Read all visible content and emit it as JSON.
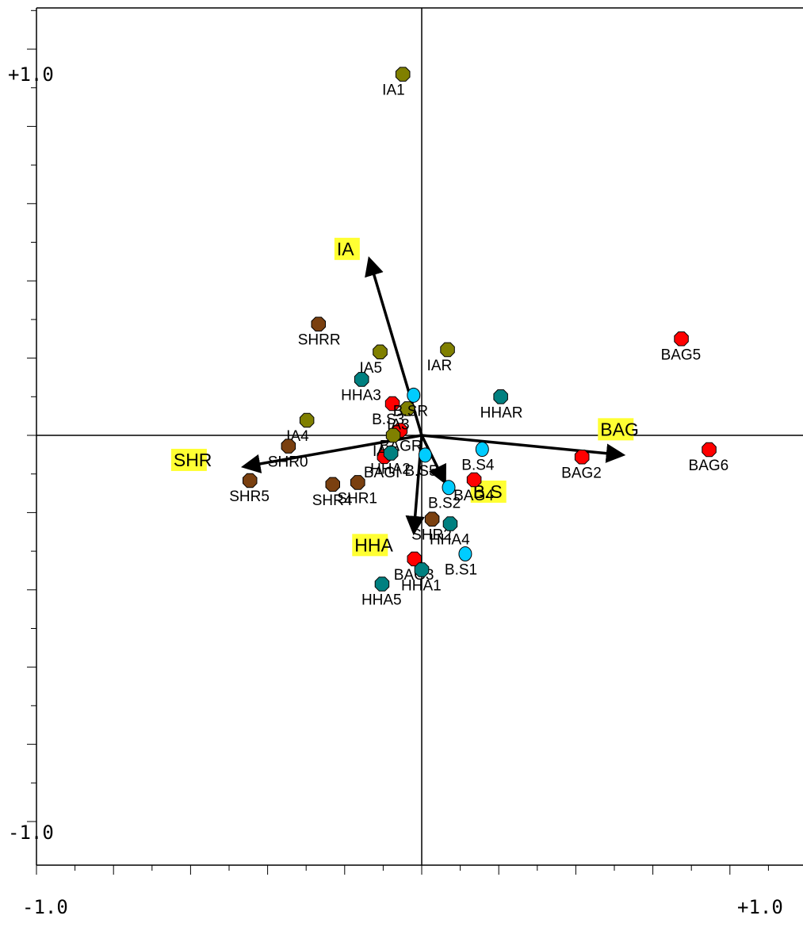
{
  "chart_data": {
    "type": "scatter",
    "title": "",
    "xlabel": "",
    "ylabel": "",
    "xlim": [
      -1.0,
      1.0
    ],
    "ylim": [
      -1.0,
      1.0
    ],
    "axis_labels": {
      "x_min": "-1.0",
      "x_max": "+1.0",
      "y_max": "+1.0",
      "y_min": "-1.0"
    },
    "vectors": [
      {
        "name": "IA",
        "x": -0.134,
        "y": 0.45,
        "color": "#ffff33"
      },
      {
        "name": "BAG",
        "x": 0.515,
        "y": -0.05,
        "color": "#ffff33"
      },
      {
        "name": "SHR",
        "x": -0.455,
        "y": -0.08,
        "color": "#ffff33"
      },
      {
        "name": "B.S",
        "x": 0.057,
        "y": -0.115,
        "color": "#ffff33"
      },
      {
        "name": "HHA",
        "x": -0.02,
        "y": -0.245,
        "color": "#ffff33"
      }
    ],
    "groups": [
      {
        "name": "BAG",
        "color": "#ff0000",
        "points": [
          {
            "label": "BAG5",
            "x": 0.674,
            "y": 0.25
          },
          {
            "label": "BAG6",
            "x": 0.746,
            "y": -0.037
          },
          {
            "label": "BAG2",
            "x": 0.416,
            "y": -0.056
          },
          {
            "label": "B.S3",
            "x": -0.076,
            "y": 0.082
          },
          {
            "label": "BAGR",
            "x": -0.056,
            "y": 0.013
          },
          {
            "label": "BAGI",
            "x": -0.097,
            "y": -0.055
          },
          {
            "label": "BAG4",
            "x": 0.136,
            "y": -0.115
          },
          {
            "label": "BAG3",
            "x": -0.019,
            "y": -0.32
          }
        ]
      },
      {
        "name": "IA",
        "color": "#808000",
        "points": [
          {
            "label": "IA1",
            "x": -0.049,
            "y": 0.935
          },
          {
            "label": "IA5",
            "x": -0.108,
            "y": 0.216
          },
          {
            "label": "IAR",
            "x": 0.067,
            "y": 0.222
          },
          {
            "label": "IA3",
            "x": -0.037,
            "y": 0.069
          },
          {
            "label": "IA4",
            "x": -0.298,
            "y": 0.039
          },
          {
            "label": "IA2",
            "x": -0.074,
            "y": 0.0
          }
        ]
      },
      {
        "name": "SHR",
        "color": "#7a4010",
        "points": [
          {
            "label": "SHRR",
            "x": -0.268,
            "y": 0.288
          },
          {
            "label": "SHR0",
            "x": -0.346,
            "y": -0.028
          },
          {
            "label": "SHR4",
            "x": -0.231,
            "y": -0.127
          },
          {
            "label": "SHR1",
            "x": -0.166,
            "y": -0.122
          },
          {
            "label": "SHR5",
            "x": -0.446,
            "y": -0.117
          },
          {
            "label": "SHR2",
            "x": 0.027,
            "y": -0.217
          }
        ]
      },
      {
        "name": "HHA",
        "color": "#008080",
        "points": [
          {
            "label": "HHAR",
            "x": 0.205,
            "y": 0.1
          },
          {
            "label": "HHA3",
            "x": -0.156,
            "y": 0.145
          },
          {
            "label": "HHA2",
            "x": -0.08,
            "y": -0.046
          },
          {
            "label": "HHA4",
            "x": 0.074,
            "y": -0.229
          },
          {
            "label": "HHA1",
            "x": 0.0,
            "y": -0.348
          },
          {
            "label": "HHA5",
            "x": -0.103,
            "y": -0.385
          }
        ]
      },
      {
        "name": "B.S",
        "color": "#00ccff",
        "points": [
          {
            "label": "B.SR",
            "x": -0.021,
            "y": 0.104
          },
          {
            "label": "B.S4",
            "x": 0.157,
            "y": -0.036
          },
          {
            "label": "B.S5",
            "x": 0.009,
            "y": -0.051
          },
          {
            "label": "B.S2",
            "x": 0.07,
            "y": -0.135
          },
          {
            "label": "B.S1",
            "x": 0.113,
            "y": -0.307
          }
        ]
      }
    ]
  }
}
